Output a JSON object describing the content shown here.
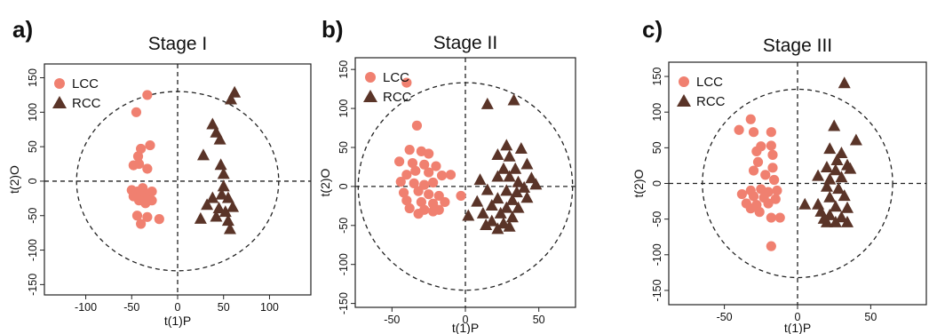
{
  "chart_data": [
    {
      "panel": "a)",
      "type": "scatter",
      "title": "Stage I",
      "xlabel": "t(1)P",
      "ylabel": "t(2)O",
      "xlim": [
        -145,
        145
      ],
      "ylim": [
        -165,
        170
      ],
      "xticks": [
        "-100",
        "-50",
        "0",
        "50",
        "100"
      ],
      "yticks": [
        "-150",
        "-100",
        "-50",
        "0",
        "50",
        "100",
        "150"
      ],
      "legend": [
        "LCC",
        "RCC"
      ],
      "legend_position": "top-left",
      "ellipse": {
        "rx": 110,
        "ry": 130
      },
      "series": [
        {
          "name": "LCC",
          "marker": "circle",
          "color": "#f08070",
          "points": [
            [
              -33,
              125
            ],
            [
              -45,
              100
            ],
            [
              -30,
              52
            ],
            [
              -40,
              47
            ],
            [
              -43,
              36
            ],
            [
              -48,
              23
            ],
            [
              -42,
              25
            ],
            [
              -33,
              18
            ],
            [
              -38,
              -10
            ],
            [
              -50,
              -13
            ],
            [
              -44,
              -15
            ],
            [
              -36,
              -17
            ],
            [
              -28,
              -15
            ],
            [
              -48,
              -22
            ],
            [
              -40,
              -21
            ],
            [
              -32,
              -24
            ],
            [
              -42,
              -28
            ],
            [
              -35,
              -32
            ],
            [
              -28,
              -28
            ],
            [
              -44,
              -50
            ],
            [
              -33,
              -52
            ],
            [
              -20,
              -55
            ],
            [
              -40,
              -62
            ]
          ]
        },
        {
          "name": "RCC",
          "marker": "triangle",
          "color": "#5a3428",
          "points": [
            [
              62,
              128
            ],
            [
              58,
              118
            ],
            [
              38,
              82
            ],
            [
              42,
              70
            ],
            [
              46,
              60
            ],
            [
              28,
              37
            ],
            [
              47,
              23
            ],
            [
              50,
              10
            ],
            [
              50,
              -8
            ],
            [
              48,
              -20
            ],
            [
              38,
              -25
            ],
            [
              55,
              -25
            ],
            [
              60,
              -38
            ],
            [
              32,
              -35
            ],
            [
              45,
              -40
            ],
            [
              52,
              -45
            ],
            [
              42,
              -52
            ],
            [
              25,
              -55
            ],
            [
              55,
              -58
            ],
            [
              57,
              -70
            ]
          ]
        }
      ]
    },
    {
      "panel": "b)",
      "type": "scatter",
      "title": "Stage II",
      "xlabel": "t(1)P",
      "ylabel": "t(2)O",
      "xlim": [
        -75,
        75
      ],
      "ylim": [
        -155,
        165
      ],
      "xticks": [
        "-50",
        "0",
        "50"
      ],
      "yticks": [
        "-150",
        "-100",
        "-50",
        "0",
        "50",
        "100",
        "150"
      ],
      "legend": [
        "LCC",
        "RCC"
      ],
      "legend_position": "top-left",
      "ellipse": {
        "rx": 73,
        "ry": 133
      },
      "series": [
        {
          "name": "LCC",
          "marker": "circle",
          "color": "#f08070",
          "points": [
            [
              -40,
              133
            ],
            [
              -33,
              78
            ],
            [
              -38,
              47
            ],
            [
              -30,
              45
            ],
            [
              -25,
              42
            ],
            [
              -45,
              32
            ],
            [
              -36,
              30
            ],
            [
              -28,
              28
            ],
            [
              -20,
              26
            ],
            [
              -34,
              20
            ],
            [
              -25,
              18
            ],
            [
              -40,
              15
            ],
            [
              -16,
              14
            ],
            [
              -10,
              15
            ],
            [
              -44,
              6
            ],
            [
              -35,
              4
            ],
            [
              -28,
              2
            ],
            [
              -22,
              5
            ],
            [
              -42,
              -8
            ],
            [
              -32,
              -6
            ],
            [
              -25,
              -10
            ],
            [
              -18,
              -12
            ],
            [
              -3,
              -12
            ],
            [
              -40,
              -18
            ],
            [
              -30,
              -20
            ],
            [
              -22,
              -22
            ],
            [
              -14,
              -20
            ],
            [
              -38,
              -28
            ],
            [
              -28,
              -30
            ],
            [
              -18,
              -30
            ],
            [
              -32,
              -35
            ],
            [
              -22,
              -32
            ]
          ]
        },
        {
          "name": "RCC",
          "marker": "triangle",
          "color": "#5a3428",
          "points": [
            [
              15,
              105
            ],
            [
              33,
              110
            ],
            [
              28,
              52
            ],
            [
              38,
              48
            ],
            [
              22,
              40
            ],
            [
              30,
              38
            ],
            [
              42,
              28
            ],
            [
              26,
              22
            ],
            [
              34,
              22
            ],
            [
              45,
              10
            ],
            [
              22,
              12
            ],
            [
              30,
              12
            ],
            [
              10,
              8
            ],
            [
              36,
              5
            ],
            [
              48,
              2
            ],
            [
              40,
              -2
            ],
            [
              15,
              -5
            ],
            [
              28,
              -6
            ],
            [
              35,
              -8
            ],
            [
              22,
              -16
            ],
            [
              32,
              -18
            ],
            [
              42,
              -15
            ],
            [
              8,
              -20
            ],
            [
              18,
              -25
            ],
            [
              28,
              -28
            ],
            [
              36,
              -28
            ],
            [
              12,
              -35
            ],
            [
              24,
              -35
            ],
            [
              32,
              -40
            ],
            [
              2,
              -38
            ],
            [
              18,
              -45
            ],
            [
              26,
              -48
            ],
            [
              14,
              -50
            ],
            [
              22,
              -55
            ],
            [
              30,
              -52
            ]
          ]
        }
      ]
    },
    {
      "panel": "c)",
      "type": "scatter",
      "title": "Stage III",
      "xlabel": "t(1)P",
      "ylabel": "t(2)O",
      "xlim": [
        -88,
        88
      ],
      "ylim": [
        -170,
        170
      ],
      "xticks": [
        "-50",
        "0",
        "50"
      ],
      "yticks": [
        "-150",
        "-100",
        "-50",
        "0",
        "50",
        "100",
        "150"
      ],
      "legend": [
        "LCC",
        "RCC"
      ],
      "legend_position": "top-left",
      "ellipse": {
        "rx": 65,
        "ry": 132
      },
      "series": [
        {
          "name": "LCC",
          "marker": "circle",
          "color": "#f08070",
          "points": [
            [
              -40,
              75
            ],
            [
              -32,
              90
            ],
            [
              -30,
              72
            ],
            [
              -18,
              72
            ],
            [
              -25,
              52
            ],
            [
              -28,
              45
            ],
            [
              -18,
              53
            ],
            [
              -17,
              40
            ],
            [
              -27,
              30
            ],
            [
              -17,
              22
            ],
            [
              -30,
              18
            ],
            [
              -22,
              12
            ],
            [
              -16,
              5
            ],
            [
              -32,
              -10
            ],
            [
              -25,
              -8
            ],
            [
              -20,
              -12
            ],
            [
              -14,
              -10
            ],
            [
              -38,
              -15
            ],
            [
              -30,
              -18
            ],
            [
              -23,
              -20
            ],
            [
              -15,
              -22
            ],
            [
              -35,
              -28
            ],
            [
              -28,
              -30
            ],
            [
              -20,
              -28
            ],
            [
              -32,
              -35
            ],
            [
              -26,
              -40
            ],
            [
              -18,
              -48
            ],
            [
              -12,
              -48
            ],
            [
              -18,
              -88
            ]
          ]
        },
        {
          "name": "RCC",
          "marker": "triangle",
          "color": "#5a3428",
          "points": [
            [
              32,
              140
            ],
            [
              25,
              80
            ],
            [
              40,
              60
            ],
            [
              22,
              48
            ],
            [
              30,
              42
            ],
            [
              27,
              32
            ],
            [
              34,
              25
            ],
            [
              20,
              22
            ],
            [
              26,
              18
            ],
            [
              14,
              10
            ],
            [
              22,
              5
            ],
            [
              30,
              8
            ],
            [
              36,
              20
            ],
            [
              20,
              -5
            ],
            [
              28,
              -8
            ],
            [
              32,
              -18
            ],
            [
              22,
              -20
            ],
            [
              5,
              -30
            ],
            [
              14,
              -30
            ],
            [
              26,
              -33
            ],
            [
              34,
              -35
            ],
            [
              16,
              -40
            ],
            [
              22,
              -45
            ],
            [
              30,
              -48
            ],
            [
              18,
              -50
            ],
            [
              26,
              -55
            ],
            [
              34,
              -55
            ],
            [
              20,
              -55
            ]
          ]
        }
      ]
    }
  ]
}
